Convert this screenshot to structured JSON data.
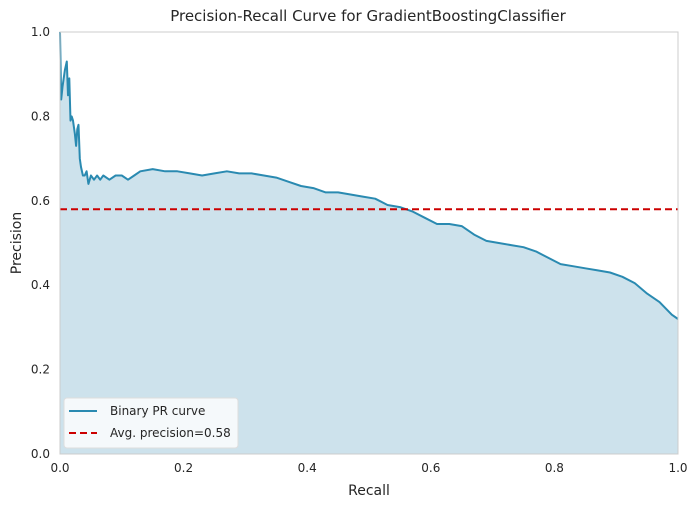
{
  "chart_data": {
    "type": "area",
    "title": "Precision-Recall Curve for GradientBoostingClassifier",
    "xlabel": "Recall",
    "ylabel": "Precision",
    "xlim": [
      0,
      1
    ],
    "ylim": [
      0,
      1
    ],
    "x_ticks": [
      "0.0",
      "0.2",
      "0.4",
      "0.6",
      "0.8",
      "1.0"
    ],
    "y_ticks": [
      "0.0",
      "0.2",
      "0.4",
      "0.6",
      "0.8",
      "1.0"
    ],
    "grid": false,
    "legend_position": "lower-left",
    "series": [
      {
        "name": "Binary PR curve",
        "style": "line-with-filled-area",
        "color": "#2a8ab1",
        "fill_color": "#cde2ec",
        "x": [
          0.0,
          0.002,
          0.004,
          0.006,
          0.008,
          0.011,
          0.013,
          0.015,
          0.017,
          0.019,
          0.021,
          0.024,
          0.026,
          0.028,
          0.03,
          0.032,
          0.034,
          0.037,
          0.04,
          0.043,
          0.046,
          0.048,
          0.05,
          0.055,
          0.06,
          0.065,
          0.07,
          0.08,
          0.09,
          0.1,
          0.11,
          0.12,
          0.13,
          0.15,
          0.17,
          0.19,
          0.21,
          0.23,
          0.25,
          0.27,
          0.29,
          0.31,
          0.33,
          0.35,
          0.37,
          0.39,
          0.41,
          0.43,
          0.45,
          0.47,
          0.49,
          0.51,
          0.53,
          0.55,
          0.57,
          0.59,
          0.61,
          0.63,
          0.65,
          0.67,
          0.69,
          0.71,
          0.73,
          0.75,
          0.77,
          0.79,
          0.81,
          0.83,
          0.85,
          0.87,
          0.89,
          0.91,
          0.93,
          0.95,
          0.97,
          0.99,
          1.0
        ],
        "y": [
          1.0,
          0.84,
          0.87,
          0.89,
          0.91,
          0.93,
          0.85,
          0.89,
          0.79,
          0.8,
          0.79,
          0.76,
          0.73,
          0.77,
          0.78,
          0.7,
          0.68,
          0.66,
          0.66,
          0.67,
          0.64,
          0.65,
          0.66,
          0.65,
          0.66,
          0.65,
          0.66,
          0.65,
          0.66,
          0.66,
          0.65,
          0.66,
          0.67,
          0.675,
          0.67,
          0.67,
          0.665,
          0.66,
          0.665,
          0.67,
          0.665,
          0.665,
          0.66,
          0.655,
          0.645,
          0.635,
          0.63,
          0.62,
          0.62,
          0.615,
          0.61,
          0.605,
          0.59,
          0.585,
          0.575,
          0.56,
          0.545,
          0.545,
          0.54,
          0.52,
          0.505,
          0.5,
          0.495,
          0.49,
          0.48,
          0.465,
          0.45,
          0.445,
          0.44,
          0.435,
          0.43,
          0.42,
          0.405,
          0.38,
          0.36,
          0.33,
          0.32
        ]
      },
      {
        "name": "Avg. precision=0.58",
        "style": "dashed-line",
        "color": "#cc0000",
        "y": 0.58
      }
    ]
  }
}
